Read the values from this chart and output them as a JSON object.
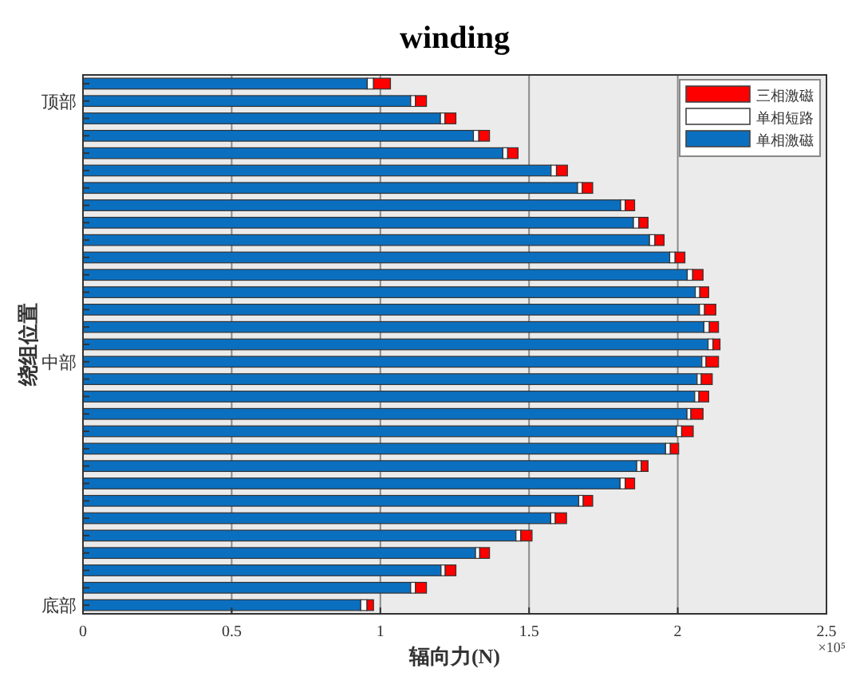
{
  "chart_data": {
    "type": "bar",
    "orientation": "horizontal",
    "stacked": true,
    "title": "winding",
    "xlabel": "辐向力(N)",
    "ylabel": "绕组位置",
    "categories": [
      null,
      "顶部",
      null,
      null,
      null,
      null,
      null,
      null,
      null,
      null,
      null,
      null,
      null,
      null,
      null,
      null,
      "中部",
      null,
      null,
      null,
      null,
      null,
      null,
      null,
      null,
      null,
      null,
      null,
      null,
      null,
      "底部"
    ],
    "series": [
      {
        "name": "单相激磁",
        "color": "#0b6fbf",
        "values": [
          0.956,
          1.102,
          1.202,
          1.313,
          1.412,
          1.574,
          1.663,
          1.808,
          1.851,
          1.905,
          1.973,
          2.032,
          2.059,
          2.073,
          2.088,
          2.102,
          2.081,
          2.065,
          2.057,
          2.031,
          1.996,
          1.959,
          1.862,
          1.806,
          1.667,
          1.573,
          1.456,
          1.32,
          1.204,
          1.102,
          0.934
        ]
      },
      {
        "name": "单相短路",
        "color": "#ffffff",
        "values": [
          0.021,
          0.016,
          0.015,
          0.018,
          0.016,
          0.018,
          0.016,
          0.015,
          0.018,
          0.018,
          0.018,
          0.018,
          0.015,
          0.017,
          0.018,
          0.016,
          0.014,
          0.014,
          0.014,
          0.013,
          0.017,
          0.016,
          0.015,
          0.017,
          0.015,
          0.015,
          0.016,
          0.014,
          0.014,
          0.016,
          0.021
        ]
      },
      {
        "name": "三相激磁",
        "color": "#ff0000",
        "values": [
          0.057,
          0.037,
          0.037,
          0.036,
          0.035,
          0.037,
          0.035,
          0.032,
          0.031,
          0.031,
          0.033,
          0.035,
          0.03,
          0.038,
          0.031,
          0.024,
          0.042,
          0.037,
          0.033,
          0.041,
          0.039,
          0.028,
          0.023,
          0.032,
          0.032,
          0.038,
          0.038,
          0.033,
          0.036,
          0.037,
          0.022
        ]
      }
    ],
    "xlim": [
      0,
      2.5
    ],
    "xticks": [
      0,
      0.5,
      1,
      1.5,
      2,
      2.5
    ],
    "grid": "x",
    "legend": "top right",
    "annotations": [
      "×10⁵"
    ]
  }
}
